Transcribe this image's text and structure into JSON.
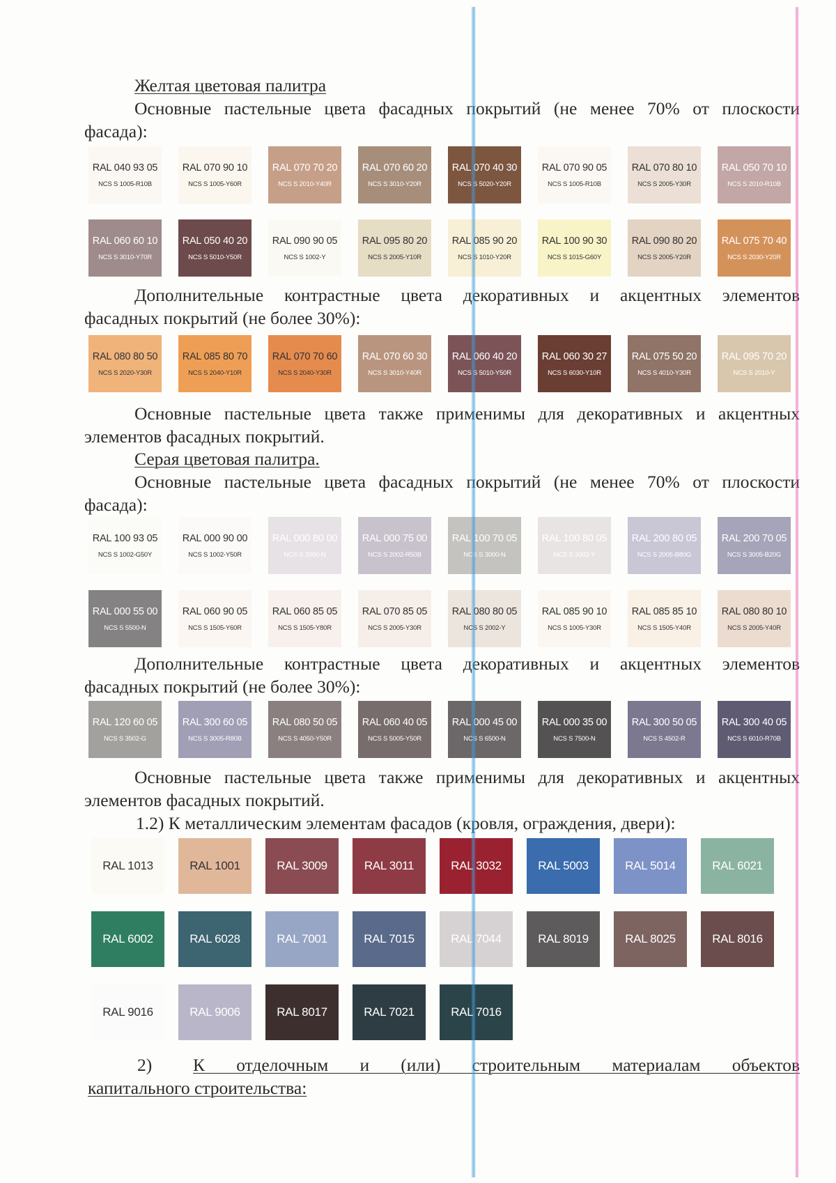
{
  "text": {
    "yellow_title": "Желтая цветовая палитра",
    "yellow_main_l1": "Основные пастельные цвета фасадных покрытий (не менее 70% от плоскости",
    "yellow_main_l2": "фасада):",
    "yellow_extra_l1": "Дополнительные контрастные цвета декоративных и акцентных элементов",
    "yellow_extra_l2": "фасадных покрытий (не более 30%):",
    "yellow_note_l1": "Основные пастельные цвета также применимы для декоративных и акцентных",
    "yellow_note_l2": "элементов фасадных покрытий.",
    "gray_title": "Серая цветовая палитра.",
    "gray_main_l1": "Основные пастельные цвета фасадных покрытий (не менее 70% от плоскости",
    "gray_main_l2": "фасада):",
    "gray_extra_l1": "Дополнительные контрастные цвета декоративных и акцентных элементов",
    "gray_extra_l2": "фасадных покрытий (не более 30%):",
    "gray_note_l1": "Основные пастельные цвета также применимы для декоративных и акцентных",
    "gray_note_l2": "элементов фасадных покрытий.",
    "metal_heading": "1.2) К металлическим элементам фасадов (кровля, ограждения, двери):",
    "section2_num": "2)",
    "section2_l1": "К отделочным и (или) строительным материалам объектов",
    "section2_l2": "капитального строительства:"
  },
  "yellow_main": [
    {
      "ral": "RAL 040 93 05",
      "ncs": "NCS S 1005-R10B",
      "color": "#fbf7f3",
      "dark": true
    },
    {
      "ral": "RAL 070 90 10",
      "ncs": "NCS S 1005-Y60R",
      "color": "#fbf6ee",
      "dark": true
    },
    {
      "ral": "RAL 070 70 20",
      "ncs": "NCS S 2010-Y40R",
      "color": "#c69f88",
      "dark": false
    },
    {
      "ral": "RAL 070 60 20",
      "ncs": "NCS S 3010-Y20R",
      "color": "#a68e7b",
      "dark": false
    },
    {
      "ral": "RAL 070 40 30",
      "ncs": "NCS S 5020-Y20R",
      "color": "#7d5640",
      "dark": false
    },
    {
      "ral": "RAL 070 90 05",
      "ncs": "NCS S 1005-R10B",
      "color": "#fbf8f4",
      "dark": true
    },
    {
      "ral": "RAL 070 80 10",
      "ncs": "NCS S 2005-Y30R",
      "color": "#ece0d6",
      "dark": true
    },
    {
      "ral": "RAL 050 70 10",
      "ncs": "NCS S 2010-R10B",
      "color": "#c3a6a6",
      "dark": false
    },
    {
      "ral": "RAL 060 60 10",
      "ncs": "NCS S 3010-Y70R",
      "color": "#9f8b8b",
      "dark": false
    },
    {
      "ral": "RAL 050 40 20",
      "ncs": "NCS S 5010-Y50R",
      "color": "#6d4a4c",
      "dark": false
    },
    {
      "ral": "RAL 090 90 05",
      "ncs": "NCS S 1002-Y",
      "color": "#fbf9f3",
      "dark": true
    },
    {
      "ral": "RAL 095 80 20",
      "ncs": "NCS S 2005-Y10R",
      "color": "#e6ddc5",
      "dark": true
    },
    {
      "ral": "RAL 085 90 20",
      "ncs": "NCS S 1010-Y20R",
      "color": "#f7f0d6",
      "dark": true
    },
    {
      "ral": "RAL 100 90 30",
      "ncs": "NCS S 1015-G60Y",
      "color": "#f8f4c8",
      "dark": true
    },
    {
      "ral": "RAL 090 80 20",
      "ncs": "NCS S 2005-Y20R",
      "color": "#e3d3c2",
      "dark": true
    },
    {
      "ral": "RAL 075 70 40",
      "ncs": "NCS S 2030-Y20R",
      "color": "#d4925b",
      "dark": false
    }
  ],
  "yellow_extra": [
    {
      "ral": "RAL 080 80 50",
      "ncs": "NCS S 2020-Y30R",
      "color": "#f0b37a",
      "dark": true
    },
    {
      "ral": "RAL 085 80 70",
      "ncs": "NCS S 2040-Y10R",
      "color": "#ef9f55",
      "dark": true
    },
    {
      "ral": "RAL 070 70 60",
      "ncs": "NCS S 2040-Y30R",
      "color": "#e68b4e",
      "dark": true
    },
    {
      "ral": "RAL 070 60 30",
      "ncs": "NCS S 3010-Y40R",
      "color": "#b9957f",
      "dark": false
    },
    {
      "ral": "RAL 060 40 20",
      "ncs": "NCS S 5010-Y50R",
      "color": "#7c5458",
      "dark": false
    },
    {
      "ral": "RAL 060 30 27",
      "ncs": "NCS S 6030-Y10R",
      "color": "#6a3e33",
      "dark": false
    },
    {
      "ral": "RAL 075 50 20",
      "ncs": "NCS S 4010-Y30R",
      "color": "#8f7467",
      "dark": false
    },
    {
      "ral": "RAL 095 70 20",
      "ncs": "NCS S 2010-Y",
      "color": "#d8c7ad",
      "dark": false
    }
  ],
  "gray_main": [
    {
      "ral": "RAL 100 93 05",
      "ncs": "NCS S 1002-G50Y",
      "color": "#fbfbf7",
      "dark": true
    },
    {
      "ral": "RAL 000 90 00",
      "ncs": "NCS S 1002-Y50R",
      "color": "#fbfaf9",
      "dark": true
    },
    {
      "ral": "RAL 000 80 00",
      "ncs": "NCS S 2000-N",
      "color": "#e7e2e6",
      "dark": false
    },
    {
      "ral": "RAL 000 75 00",
      "ncs": "NCS S 2002-R50B",
      "color": "#c8c2cc",
      "dark": false
    },
    {
      "ral": "RAL 100 70 05",
      "ncs": "NCS S 3000-N",
      "color": "#c5c3c0",
      "dark": false
    },
    {
      "ral": "RAL 100 80 05",
      "ncs": "NCS S 2002-Y",
      "color": "#e9e4e4",
      "dark": false
    },
    {
      "ral": "RAL 200 80 05",
      "ncs": "NCS S 2005-B80G",
      "color": "#c9c6d6",
      "dark": false
    },
    {
      "ral": "RAL 200 70 05",
      "ncs": "NCS S 3005-B20G",
      "color": "#a6a4b8",
      "dark": false
    },
    {
      "ral": "RAL 000 55 00",
      "ncs": "NCS S 5500-N",
      "color": "#858284",
      "dark": false
    },
    {
      "ral": "RAL 060 90 05",
      "ncs": "NCS S 1505-Y60R",
      "color": "#fbf6f2",
      "dark": true
    },
    {
      "ral": "RAL 060 85 05",
      "ncs": "NCS S 1505-Y80R",
      "color": "#f8f0ed",
      "dark": true
    },
    {
      "ral": "RAL 070 85 05",
      "ncs": "NCS S 2005-Y30R",
      "color": "#f6eee9",
      "dark": true
    },
    {
      "ral": "RAL 080 80 05",
      "ncs": "NCS S 2002-Y",
      "color": "#ece5de",
      "dark": true
    },
    {
      "ral": "RAL 085 90 10",
      "ncs": "NCS S 1005-Y30R",
      "color": "#fbf7f0",
      "dark": true
    },
    {
      "ral": "RAL 085 85 10",
      "ncs": "NCS S 1505-Y40R",
      "color": "#f9f0e6",
      "dark": true
    },
    {
      "ral": "RAL 080 80 10",
      "ncs": "NCS S 2005-Y40R",
      "color": "#ecdcd0",
      "dark": true
    }
  ],
  "gray_extra": [
    {
      "ral": "RAL 120 60 05",
      "ncs": "NCS S 3502-G",
      "color": "#a3a19e",
      "dark": false
    },
    {
      "ral": "RAL 300 60 05",
      "ncs": "NCS S 3005-R80B",
      "color": "#a19fb5",
      "dark": false
    },
    {
      "ral": "RAL 080 50 05",
      "ncs": "NCS S 4050-Y50R",
      "color": "#8a807f",
      "dark": false
    },
    {
      "ral": "RAL 060 40 05",
      "ncs": "NCS S 5005-Y50R",
      "color": "#776d6c",
      "dark": false
    },
    {
      "ral": "RAL 000 45 00",
      "ncs": "NCS S 6500-N",
      "color": "#6c6869",
      "dark": false
    },
    {
      "ral": "RAL 000 35 00",
      "ncs": "NCS S 7500-N",
      "color": "#545253",
      "dark": false
    },
    {
      "ral": "RAL 300 50 05",
      "ncs": "NCS S 4502-R",
      "color": "#7b7890",
      "dark": false
    },
    {
      "ral": "RAL 300 40 05",
      "ncs": "NCS S 6010-R70B",
      "color": "#5f5b72",
      "dark": false
    }
  ],
  "metal": [
    {
      "ral": "RAL 1013",
      "color": "#fbfaf4",
      "dark": true
    },
    {
      "ral": "RAL 1001",
      "color": "#e1b79a",
      "dark": true
    },
    {
      "ral": "RAL 3009",
      "color": "#8a4c52",
      "dark": false
    },
    {
      "ral": "RAL 3011",
      "color": "#8e3b45",
      "dark": false
    },
    {
      "ral": "RAL 3032",
      "color": "#9a2230",
      "dark": false
    },
    {
      "ral": "RAL 5003",
      "color": "#3a6cae",
      "dark": false
    },
    {
      "ral": "RAL 5014",
      "color": "#7d93c7",
      "dark": false
    },
    {
      "ral": "RAL 6021",
      "color": "#8bb3a2",
      "dark": false
    },
    {
      "ral": "RAL 6002",
      "color": "#2f7e62",
      "dark": false
    },
    {
      "ral": "RAL 6028",
      "color": "#3c6471",
      "dark": false
    },
    {
      "ral": "RAL 7001",
      "color": "#97a6c4",
      "dark": false
    },
    {
      "ral": "RAL 7015",
      "color": "#5a6a8a",
      "dark": false
    },
    {
      "ral": "RAL 7044",
      "color": "#d6d2d3",
      "dark": false
    },
    {
      "ral": "RAL 8019",
      "color": "#5e5b5d",
      "dark": false
    },
    {
      "ral": "RAL 8025",
      "color": "#7d6461",
      "dark": false
    },
    {
      "ral": "RAL 8016",
      "color": "#6b4d4d",
      "dark": false
    },
    {
      "ral": "RAL 9016",
      "color": "#fbfbfb",
      "dark": true
    },
    {
      "ral": "RAL 9006",
      "color": "#b8b6c8",
      "dark": false
    },
    {
      "ral": "RAL 8017",
      "color": "#3e2f2f",
      "dark": false
    },
    {
      "ral": "RAL 7021",
      "color": "#2e3d44",
      "dark": false
    },
    {
      "ral": "RAL 7016",
      "color": "#2b4449",
      "dark": false
    }
  ]
}
